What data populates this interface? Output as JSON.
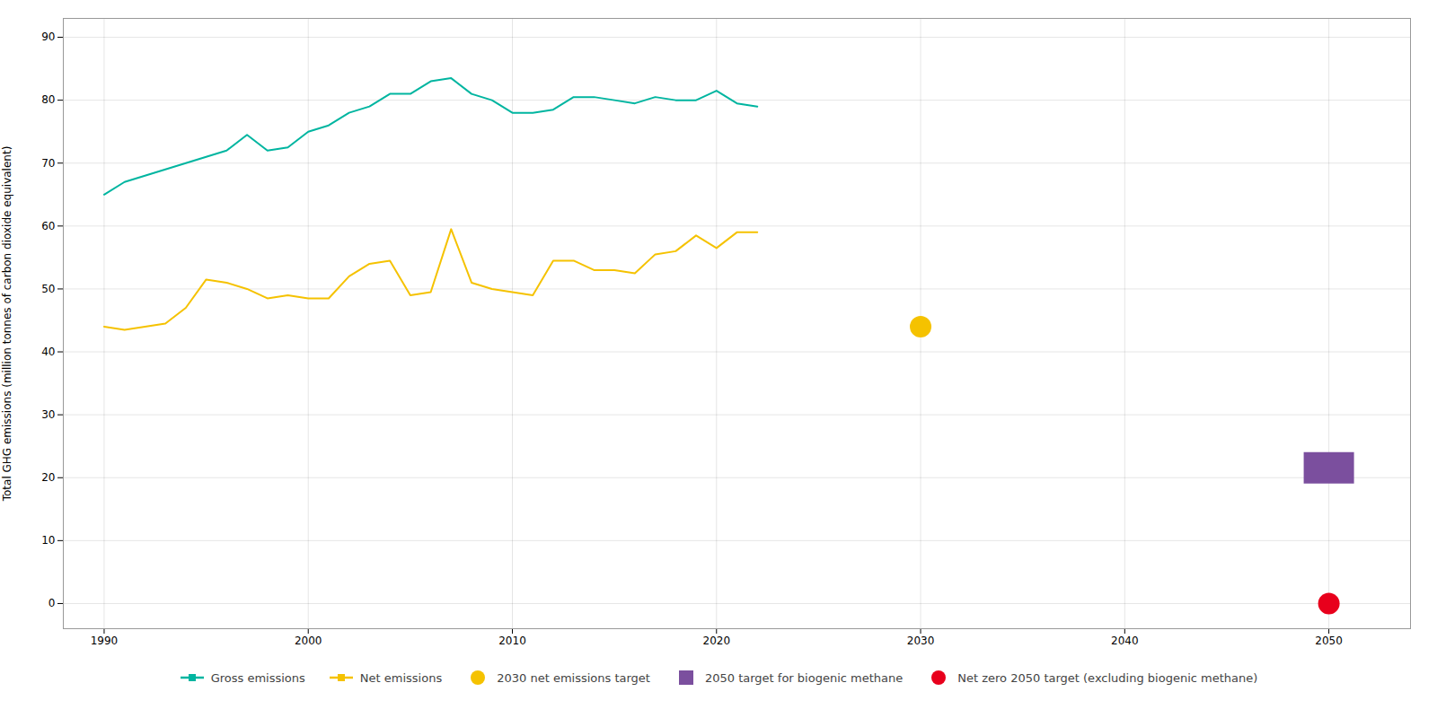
{
  "chart_data": {
    "type": "line",
    "ylabel": "Total GHG emissions (million tonnes of carbon dioxide equivalent)",
    "xlim": [
      1988,
      2054
    ],
    "ylim": [
      -4,
      93
    ],
    "xticks": [
      1990,
      2000,
      2010,
      2020,
      2030,
      2040,
      2050
    ],
    "yticks": [
      0,
      10,
      20,
      30,
      40,
      50,
      60,
      70,
      80,
      90
    ],
    "grid": true,
    "legend": "bottom",
    "series": [
      {
        "name": "Gross emissions",
        "type": "line",
        "color": "#00b5a0",
        "x": [
          1990,
          1991,
          1992,
          1993,
          1994,
          1995,
          1996,
          1997,
          1998,
          1999,
          2000,
          2001,
          2002,
          2003,
          2004,
          2005,
          2006,
          2007,
          2008,
          2009,
          2010,
          2011,
          2012,
          2013,
          2014,
          2015,
          2016,
          2017,
          2018,
          2019,
          2020,
          2021,
          2022
        ],
        "values": [
          65,
          67,
          68,
          69,
          70,
          71,
          72,
          74.5,
          72,
          72.5,
          75,
          76,
          78,
          79,
          81,
          81,
          83,
          83.5,
          81,
          80,
          78,
          78,
          78.5,
          80.5,
          80.5,
          80,
          79.5,
          80.5,
          80,
          80,
          81.5,
          79.5,
          79
        ]
      },
      {
        "name": "Net emissions",
        "type": "line",
        "color": "#f5c200",
        "x": [
          1990,
          1991,
          1992,
          1993,
          1994,
          1995,
          1996,
          1997,
          1998,
          1999,
          2000,
          2001,
          2002,
          2003,
          2004,
          2005,
          2006,
          2007,
          2008,
          2009,
          2010,
          2011,
          2012,
          2013,
          2014,
          2015,
          2016,
          2017,
          2018,
          2019,
          2020,
          2021,
          2022
        ],
        "values": [
          44,
          43.5,
          44,
          44.5,
          47,
          51.5,
          51,
          50,
          48.5,
          49,
          48.5,
          48.5,
          52,
          54,
          54.5,
          49,
          49.5,
          59.5,
          51,
          50,
          49.5,
          49,
          54.5,
          54.5,
          53,
          53,
          52.5,
          55.5,
          56,
          58.5,
          56.5,
          59,
          59
        ]
      },
      {
        "name": "2030 net emissions target",
        "type": "scatter",
        "color": "#f5c200",
        "x": [
          2030
        ],
        "values": [
          44
        ]
      },
      {
        "name": "2050 target for biogenic methane",
        "type": "bar",
        "color": "#7b4f9e",
        "x": [
          2050
        ],
        "low": [
          19
        ],
        "high": [
          24
        ]
      },
      {
        "name": "Net zero 2050 target (excluding biogenic methane)",
        "type": "scatter",
        "color": "#e8001c",
        "x": [
          2050
        ],
        "values": [
          0
        ]
      }
    ]
  }
}
